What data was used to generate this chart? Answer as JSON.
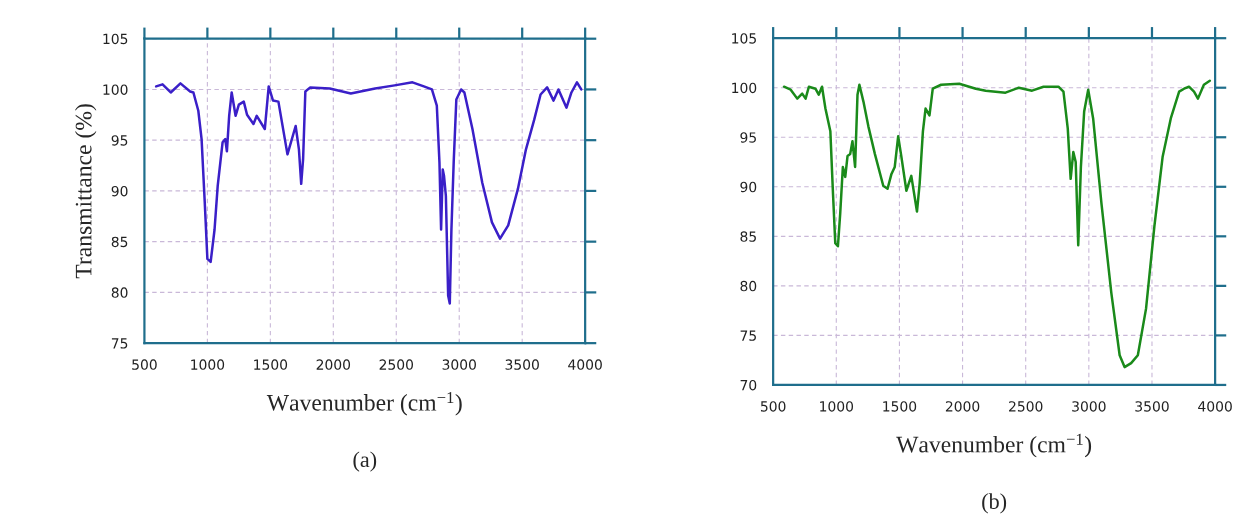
{
  "chart_data": [
    {
      "type": "line",
      "xlabel": "Wavenumber (cm$^{−1}$)",
      "ylabel": "Transmittance (%)",
      "annotations": [
        "(a)"
      ],
      "xlim": [
        500,
        4000
      ],
      "xticks": [
        500,
        1000,
        1500,
        2000,
        2500,
        3000,
        3500,
        4000
      ],
      "ylim": [
        75,
        105
      ],
      "yticks": [
        75,
        80,
        85,
        90,
        95,
        100,
        105
      ],
      "grid": true,
      "legend": false,
      "series": [
        {
          "color": "#3a1fc8",
          "x": [
            593,
            644,
            709,
            786,
            863,
            889,
            928,
            954,
            979,
            1000,
            1026,
            1057,
            1082,
            1121,
            1142,
            1155,
            1173,
            1193,
            1224,
            1250,
            1289,
            1315,
            1366,
            1392,
            1456,
            1487,
            1521,
            1564,
            1636,
            1701,
            1727,
            1745,
            1760,
            1778,
            1817,
            1972,
            2139,
            2332,
            2487,
            2629,
            2719,
            2783,
            2822,
            2843,
            2856,
            2869,
            2879,
            2894,
            2912,
            2925,
            2938,
            2956,
            2977,
            3015,
            3041,
            3105,
            3183,
            3260,
            3324,
            3389,
            3466,
            3530,
            3595,
            3646,
            3698,
            3749,
            3788,
            3852,
            3891,
            3935,
            3969
          ],
          "values": [
            100.3,
            100.5,
            99.7,
            100.6,
            99.8,
            99.7,
            97.9,
            95.1,
            88.9,
            83.3,
            83.0,
            86.2,
            90.5,
            94.8,
            95.1,
            93.9,
            97.4,
            99.7,
            97.4,
            98.5,
            98.8,
            97.5,
            96.6,
            97.4,
            96.1,
            100.3,
            98.9,
            98.8,
            93.6,
            96.4,
            94.1,
            90.7,
            93.1,
            99.8,
            100.2,
            100.1,
            99.6,
            100.1,
            100.4,
            100.7,
            100.3,
            100.0,
            98.4,
            92.8,
            86.2,
            92.1,
            91.5,
            89.5,
            79.7,
            78.9,
            86.2,
            92.8,
            99.0,
            100.0,
            99.7,
            96.1,
            90.8,
            86.9,
            85.3,
            86.6,
            90.2,
            94.1,
            97.0,
            99.5,
            100.2,
            98.9,
            100.0,
            98.2,
            99.7,
            100.7,
            100.0
          ]
        }
      ]
    },
    {
      "type": "line",
      "xlabel": "Wavenumber (cm$^{−1}$)",
      "annotations": [
        "(b)"
      ],
      "xlim": [
        500,
        4000
      ],
      "xticks": [
        500,
        1000,
        1500,
        2000,
        2500,
        3000,
        3500,
        4000
      ],
      "ylim": [
        70,
        105
      ],
      "yticks": [
        70,
        75,
        80,
        85,
        90,
        95,
        100,
        105
      ],
      "grid": true,
      "legend": false,
      "series": [
        {
          "color": "#1a8a1a",
          "x": [
            586,
            639,
            691,
            730,
            757,
            783,
            835,
            861,
            887,
            914,
            953,
            974,
            992,
            1013,
            1031,
            1052,
            1071,
            1089,
            1110,
            1128,
            1149,
            1168,
            1183,
            1215,
            1254,
            1306,
            1372,
            1406,
            1437,
            1463,
            1490,
            1516,
            1555,
            1594,
            1639,
            1660,
            1686,
            1707,
            1738,
            1764,
            1830,
            1974,
            2105,
            2183,
            2340,
            2445,
            2550,
            2641,
            2759,
            2799,
            2833,
            2856,
            2877,
            2896,
            2916,
            2937,
            2963,
            2995,
            3034,
            3100,
            3178,
            3244,
            3283,
            3335,
            3388,
            3453,
            3519,
            3584,
            3649,
            3715,
            3754,
            3793,
            3833,
            3864,
            3911,
            3958
          ],
          "values": [
            100.1,
            99.8,
            98.9,
            99.4,
            98.9,
            100.1,
            99.9,
            99.3,
            100.1,
            97.9,
            95.6,
            89.3,
            84.3,
            84.0,
            87.3,
            92.0,
            91.0,
            93.1,
            93.3,
            94.6,
            92.0,
            99.3,
            100.3,
            98.6,
            96.1,
            93.3,
            90.1,
            89.8,
            91.3,
            92.0,
            95.1,
            93.0,
            89.6,
            91.1,
            87.5,
            90.3,
            95.6,
            97.9,
            97.2,
            99.9,
            100.3,
            100.4,
            99.9,
            99.7,
            99.5,
            100.0,
            99.7,
            100.1,
            100.1,
            99.6,
            95.9,
            90.8,
            93.5,
            92.5,
            84.1,
            92.0,
            97.6,
            99.8,
            96.9,
            88.3,
            79.3,
            73.0,
            71.8,
            72.2,
            73.0,
            77.7,
            86.0,
            93.0,
            96.9,
            99.6,
            99.9,
            100.1,
            99.6,
            98.9,
            100.3,
            100.7
          ]
        }
      ]
    }
  ]
}
